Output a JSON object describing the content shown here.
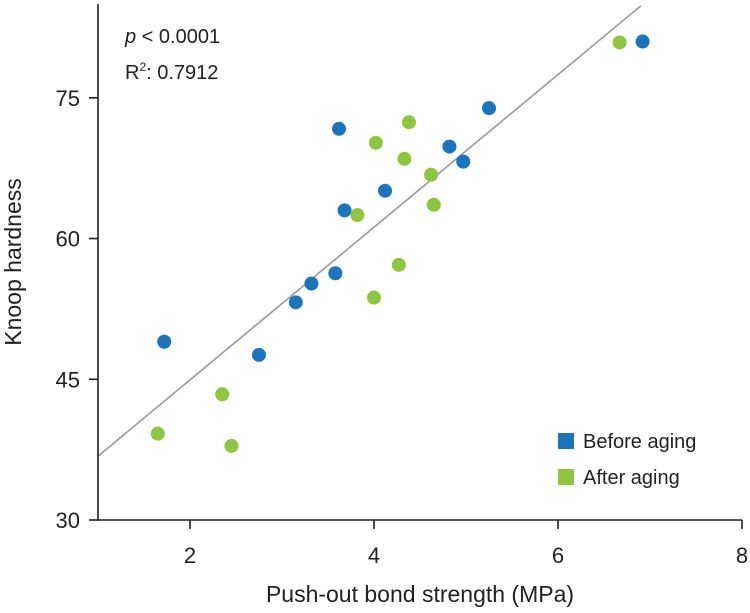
{
  "chart_data": {
    "type": "scatter",
    "title": "",
    "xlabel": "Push-out bond strength (MPa)",
    "ylabel": "Knoop hardness",
    "xlim": [
      1,
      8
    ],
    "ylim": [
      30,
      85
    ],
    "xticks": [
      2,
      4,
      6,
      8
    ],
    "yticks": [
      30,
      45,
      60,
      75
    ],
    "annotations": {
      "p_symbol": "p",
      "p_value": " < 0.0001",
      "r2_label": "R",
      "r2_sup": "2",
      "r2_value": ": 0.7912"
    },
    "fit_line": {
      "x": [
        1,
        6.9
      ],
      "y": [
        36.8,
        84.8
      ]
    },
    "legend": {
      "position": "bottom-right"
    },
    "series": [
      {
        "name": "Before aging",
        "color": "#1c75bc",
        "points": [
          [
            1.72,
            49.0
          ],
          [
            2.75,
            47.6
          ],
          [
            3.15,
            53.2
          ],
          [
            3.32,
            55.2
          ],
          [
            3.58,
            56.3
          ],
          [
            3.62,
            71.7
          ],
          [
            3.68,
            63.0
          ],
          [
            4.12,
            65.1
          ],
          [
            4.82,
            69.8
          ],
          [
            4.97,
            68.2
          ],
          [
            5.25,
            73.9
          ],
          [
            6.92,
            81.0
          ]
        ]
      },
      {
        "name": "After aging",
        "color": "#8dc63f",
        "points": [
          [
            1.65,
            39.2
          ],
          [
            2.35,
            43.4
          ],
          [
            2.45,
            37.9
          ],
          [
            3.82,
            62.5
          ],
          [
            4.0,
            53.7
          ],
          [
            4.02,
            70.2
          ],
          [
            4.27,
            57.2
          ],
          [
            4.33,
            68.5
          ],
          [
            4.38,
            72.4
          ],
          [
            4.62,
            66.8
          ],
          [
            4.65,
            63.6
          ],
          [
            6.67,
            80.9
          ]
        ]
      }
    ]
  }
}
